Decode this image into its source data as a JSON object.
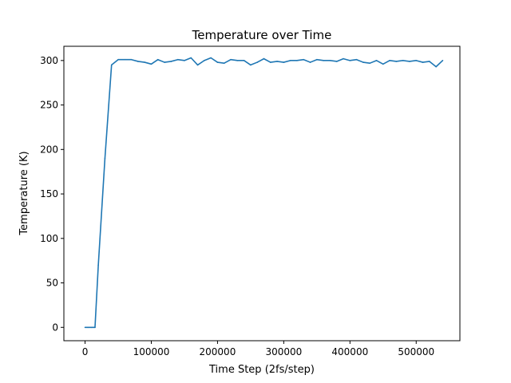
{
  "chart_data": {
    "type": "line",
    "title": "Temperature over Time",
    "xlabel": "Time Step (2fs/step)",
    "ylabel": "Temperature (K)",
    "xlim": [
      -32000,
      566000
    ],
    "ylim": [
      -15,
      316
    ],
    "xticks": [
      0,
      100000,
      200000,
      300000,
      400000,
      500000
    ],
    "yticks": [
      0,
      50,
      100,
      150,
      200,
      250,
      300
    ],
    "grid": false,
    "series": [
      {
        "color": "#1f77b4",
        "x": [
          0,
          5000,
          10000,
          15000,
          20000,
          30000,
          40000,
          50000,
          60000,
          70000,
          80000,
          90000,
          100000,
          110000,
          120000,
          130000,
          140000,
          150000,
          160000,
          170000,
          180000,
          190000,
          200000,
          210000,
          220000,
          230000,
          240000,
          250000,
          260000,
          270000,
          280000,
          290000,
          300000,
          310000,
          320000,
          330000,
          340000,
          350000,
          360000,
          370000,
          380000,
          390000,
          400000,
          410000,
          420000,
          430000,
          440000,
          450000,
          460000,
          470000,
          480000,
          490000,
          500000,
          510000,
          520000,
          530000,
          540000
        ],
        "y": [
          0,
          0,
          0,
          0,
          70,
          190,
          295,
          301,
          301,
          301,
          299,
          298,
          296,
          301,
          298,
          299,
          301,
          300,
          303,
          295,
          300,
          303,
          298,
          297,
          301,
          300,
          300,
          295,
          298,
          302,
          298,
          299,
          298,
          300,
          300,
          301,
          298,
          301,
          300,
          300,
          299,
          302,
          300,
          301,
          298,
          297,
          300,
          296,
          300,
          299,
          300,
          299,
          300,
          298,
          299,
          293,
          300
        ]
      }
    ]
  }
}
